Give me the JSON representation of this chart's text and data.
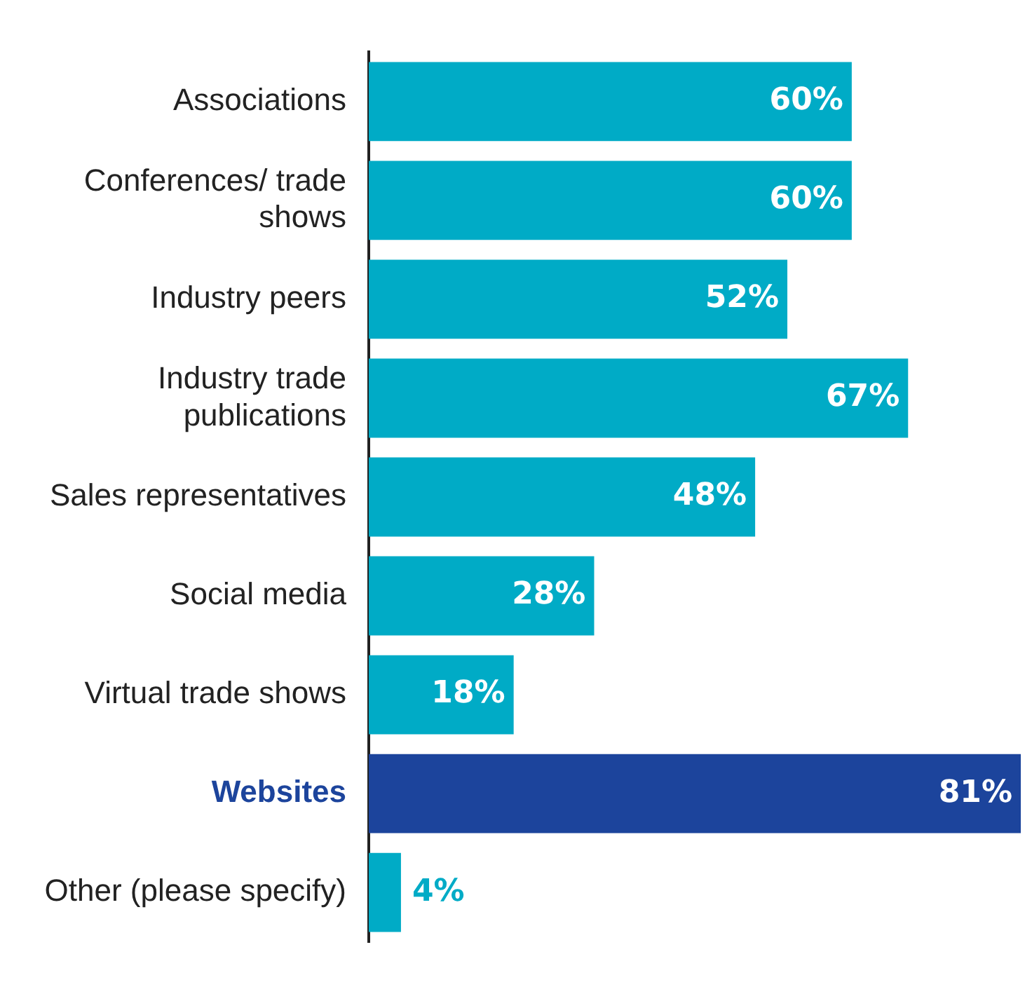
{
  "chart_data": {
    "type": "bar",
    "orientation": "horizontal",
    "categories": [
      "Associations",
      "Conferences/ trade shows",
      "Industry peers",
      "Industry trade publications",
      "Sales representatives",
      "Social media",
      "Virtual trade shows",
      "Websites",
      "Other (please specify)"
    ],
    "values": [
      60,
      60,
      52,
      67,
      48,
      28,
      18,
      81,
      4
    ],
    "value_labels": [
      "60%",
      "60%",
      "52%",
      "67%",
      "48%",
      "28%",
      "18%",
      "81%",
      "4%"
    ],
    "colors": [
      "#00abc6",
      "#00abc6",
      "#00abc6",
      "#00abc6",
      "#00abc6",
      "#00abc6",
      "#00abc6",
      "#1c449c",
      "#00abc6"
    ],
    "xlim": [
      0,
      81
    ],
    "tick_labels": "y",
    "grid": false,
    "legend": false
  }
}
